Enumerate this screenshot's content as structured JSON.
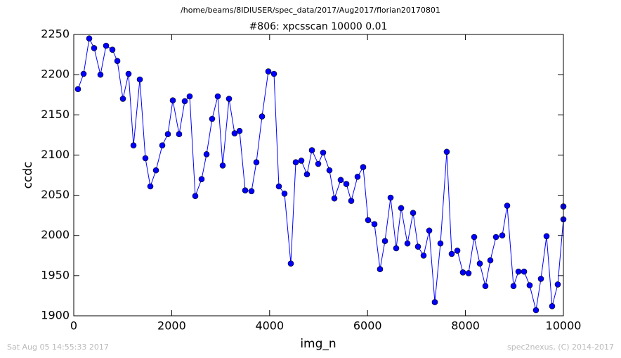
{
  "chart_data": {
    "type": "line",
    "suptitle": "/home/beams/8IDIUSER/spec_data/2017/Aug2017/florian20170801",
    "title": "#806: xpcsscan 10000 0.01",
    "xlabel": "img_n",
    "ylabel": "ccdc",
    "footer_left": "Sat Aug 05 14:55:33 2017",
    "footer_right": "spec2nexus, (C) 2014-2017",
    "x": [
      86,
      201,
      316,
      416,
      545,
      660,
      789,
      890,
      1004,
      1119,
      1220,
      1349,
      1463,
      1564,
      1679,
      1808,
      1922,
      2023,
      2152,
      2267,
      2367,
      2482,
      2611,
      2712,
      2826,
      2941,
      3042,
      3171,
      3285,
      3386,
      3501,
      3630,
      3730,
      3845,
      3974,
      4089,
      4189,
      4304,
      4433,
      4534,
      4648,
      4763,
      4864,
      4993,
      5093,
      5222,
      5323,
      5452,
      5567,
      5667,
      5796,
      5911,
      6011,
      6141,
      6255,
      6356,
      6471,
      6585,
      6686,
      6815,
      6930,
      7030,
      7145,
      7260,
      7374,
      7489,
      7618,
      7719,
      7834,
      7948,
      8063,
      8178,
      8293,
      8407,
      8508,
      8623,
      8752,
      8852,
      8981,
      9082,
      9197,
      9311,
      9440,
      9541,
      9656,
      9770,
      9885,
      10000,
      10000
    ],
    "series": [
      {
        "name": "ccdc",
        "color": "#0000ff",
        "values": [
          2182,
          2201,
          2245,
          2233,
          2200,
          2236,
          2231,
          2217,
          2170,
          2201,
          2112,
          2194,
          2096,
          2061,
          2081,
          2112,
          2126,
          2168,
          2126,
          2167,
          2173,
          2049,
          2070,
          2101,
          2145,
          2173,
          2087,
          2170,
          2127,
          2130,
          2056,
          2055,
          2091,
          2148,
          2204,
          2201,
          2061,
          2052,
          1965,
          2091,
          2093,
          2076,
          2106,
          2089,
          2103,
          2081,
          2046,
          2069,
          2064,
          2043,
          2073,
          2085,
          2019,
          2014,
          1958,
          1993,
          2047,
          1984,
          2034,
          1990,
          2028,
          1986,
          1975,
          2006,
          1917,
          1990,
          2104,
          1977,
          1981,
          1954,
          1953,
          1998,
          1965,
          1937,
          1969,
          1998,
          2000,
          2037,
          1937,
          1955,
          1955,
          1938,
          1907,
          1946,
          1999,
          1912,
          1939,
          2020,
          2036
        ]
      }
    ],
    "xlim": [
      0,
      10000
    ],
    "xticks": [
      0,
      2000,
      4000,
      6000,
      8000,
      10000
    ],
    "ylim": [
      1900,
      2250
    ],
    "yticks": [
      1900,
      1950,
      2000,
      2050,
      2100,
      2150,
      2200,
      2250
    ],
    "grid": false
  }
}
